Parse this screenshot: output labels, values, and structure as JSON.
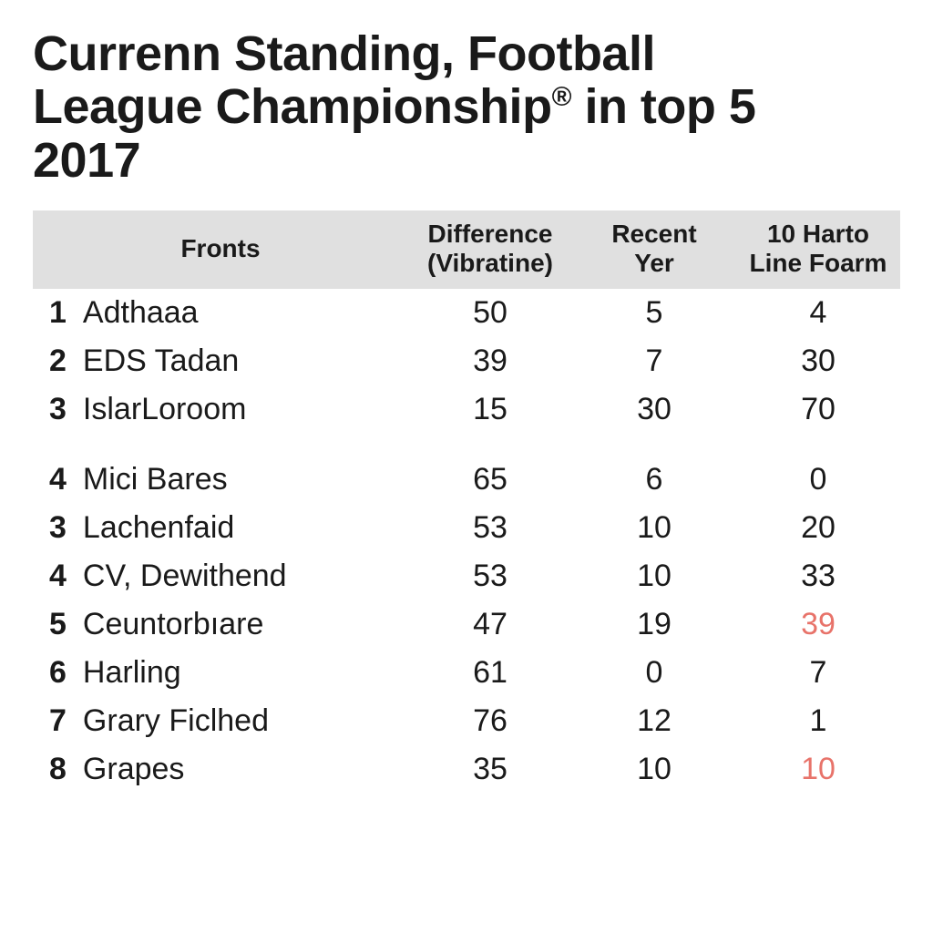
{
  "title_line1": "Currenn Standing, Football",
  "title_line2a": "League Championship",
  "title_sup": "®",
  "title_line2b": " in top 5",
  "title_line3": "2017",
  "columns": {
    "fronts": "Fronts",
    "diff_l1": "Difference",
    "diff_l2": "(Vibratine)",
    "recent_l1": "Recent",
    "recent_l2": "Yer",
    "harto_l1": "10 Harto",
    "harto_l2": "Line Foarm"
  },
  "text_color": "#1a1a1a",
  "highlight_color": "#e8736a",
  "header_bg": "#e0e0e0",
  "rows": [
    {
      "rank": "1",
      "name": "Adthaaa",
      "diff": "50",
      "recent": "5",
      "harto": "4",
      "harto_hl": false
    },
    {
      "rank": "2",
      "name": "EDS Tadan",
      "diff": "39",
      "recent": "7",
      "harto": "30",
      "harto_hl": false
    },
    {
      "rank": "3",
      "name": "IslarLoroom",
      "diff": "15",
      "recent": "30",
      "harto": "70",
      "harto_hl": false
    },
    {
      "gap": true
    },
    {
      "rank": "4",
      "name": "Mici Bares",
      "diff": "65",
      "recent": "6",
      "harto": "0",
      "harto_hl": false
    },
    {
      "rank": "3",
      "name": "Lachenfaid",
      "diff": "53",
      "recent": "10",
      "harto": "20",
      "harto_hl": false
    },
    {
      "rank": "4",
      "name": "CV, Dewithend",
      "diff": "53",
      "recent": "10",
      "harto": "33",
      "harto_hl": false
    },
    {
      "rank": "5",
      "name": "Ceuntorbıare",
      "diff": "47",
      "recent": "19",
      "harto": "39",
      "harto_hl": true
    },
    {
      "rank": "6",
      "name": "Harling",
      "diff": "61",
      "recent": "0",
      "harto": "7",
      "harto_hl": false
    },
    {
      "rank": "7",
      "name": "Grary Ficlhed",
      "diff": "76",
      "recent": "12",
      "harto": "1",
      "harto_hl": false
    },
    {
      "rank": "8",
      "name": "Grapes",
      "diff": "35",
      "recent": "10",
      "harto": "10",
      "harto_hl": true
    }
  ]
}
